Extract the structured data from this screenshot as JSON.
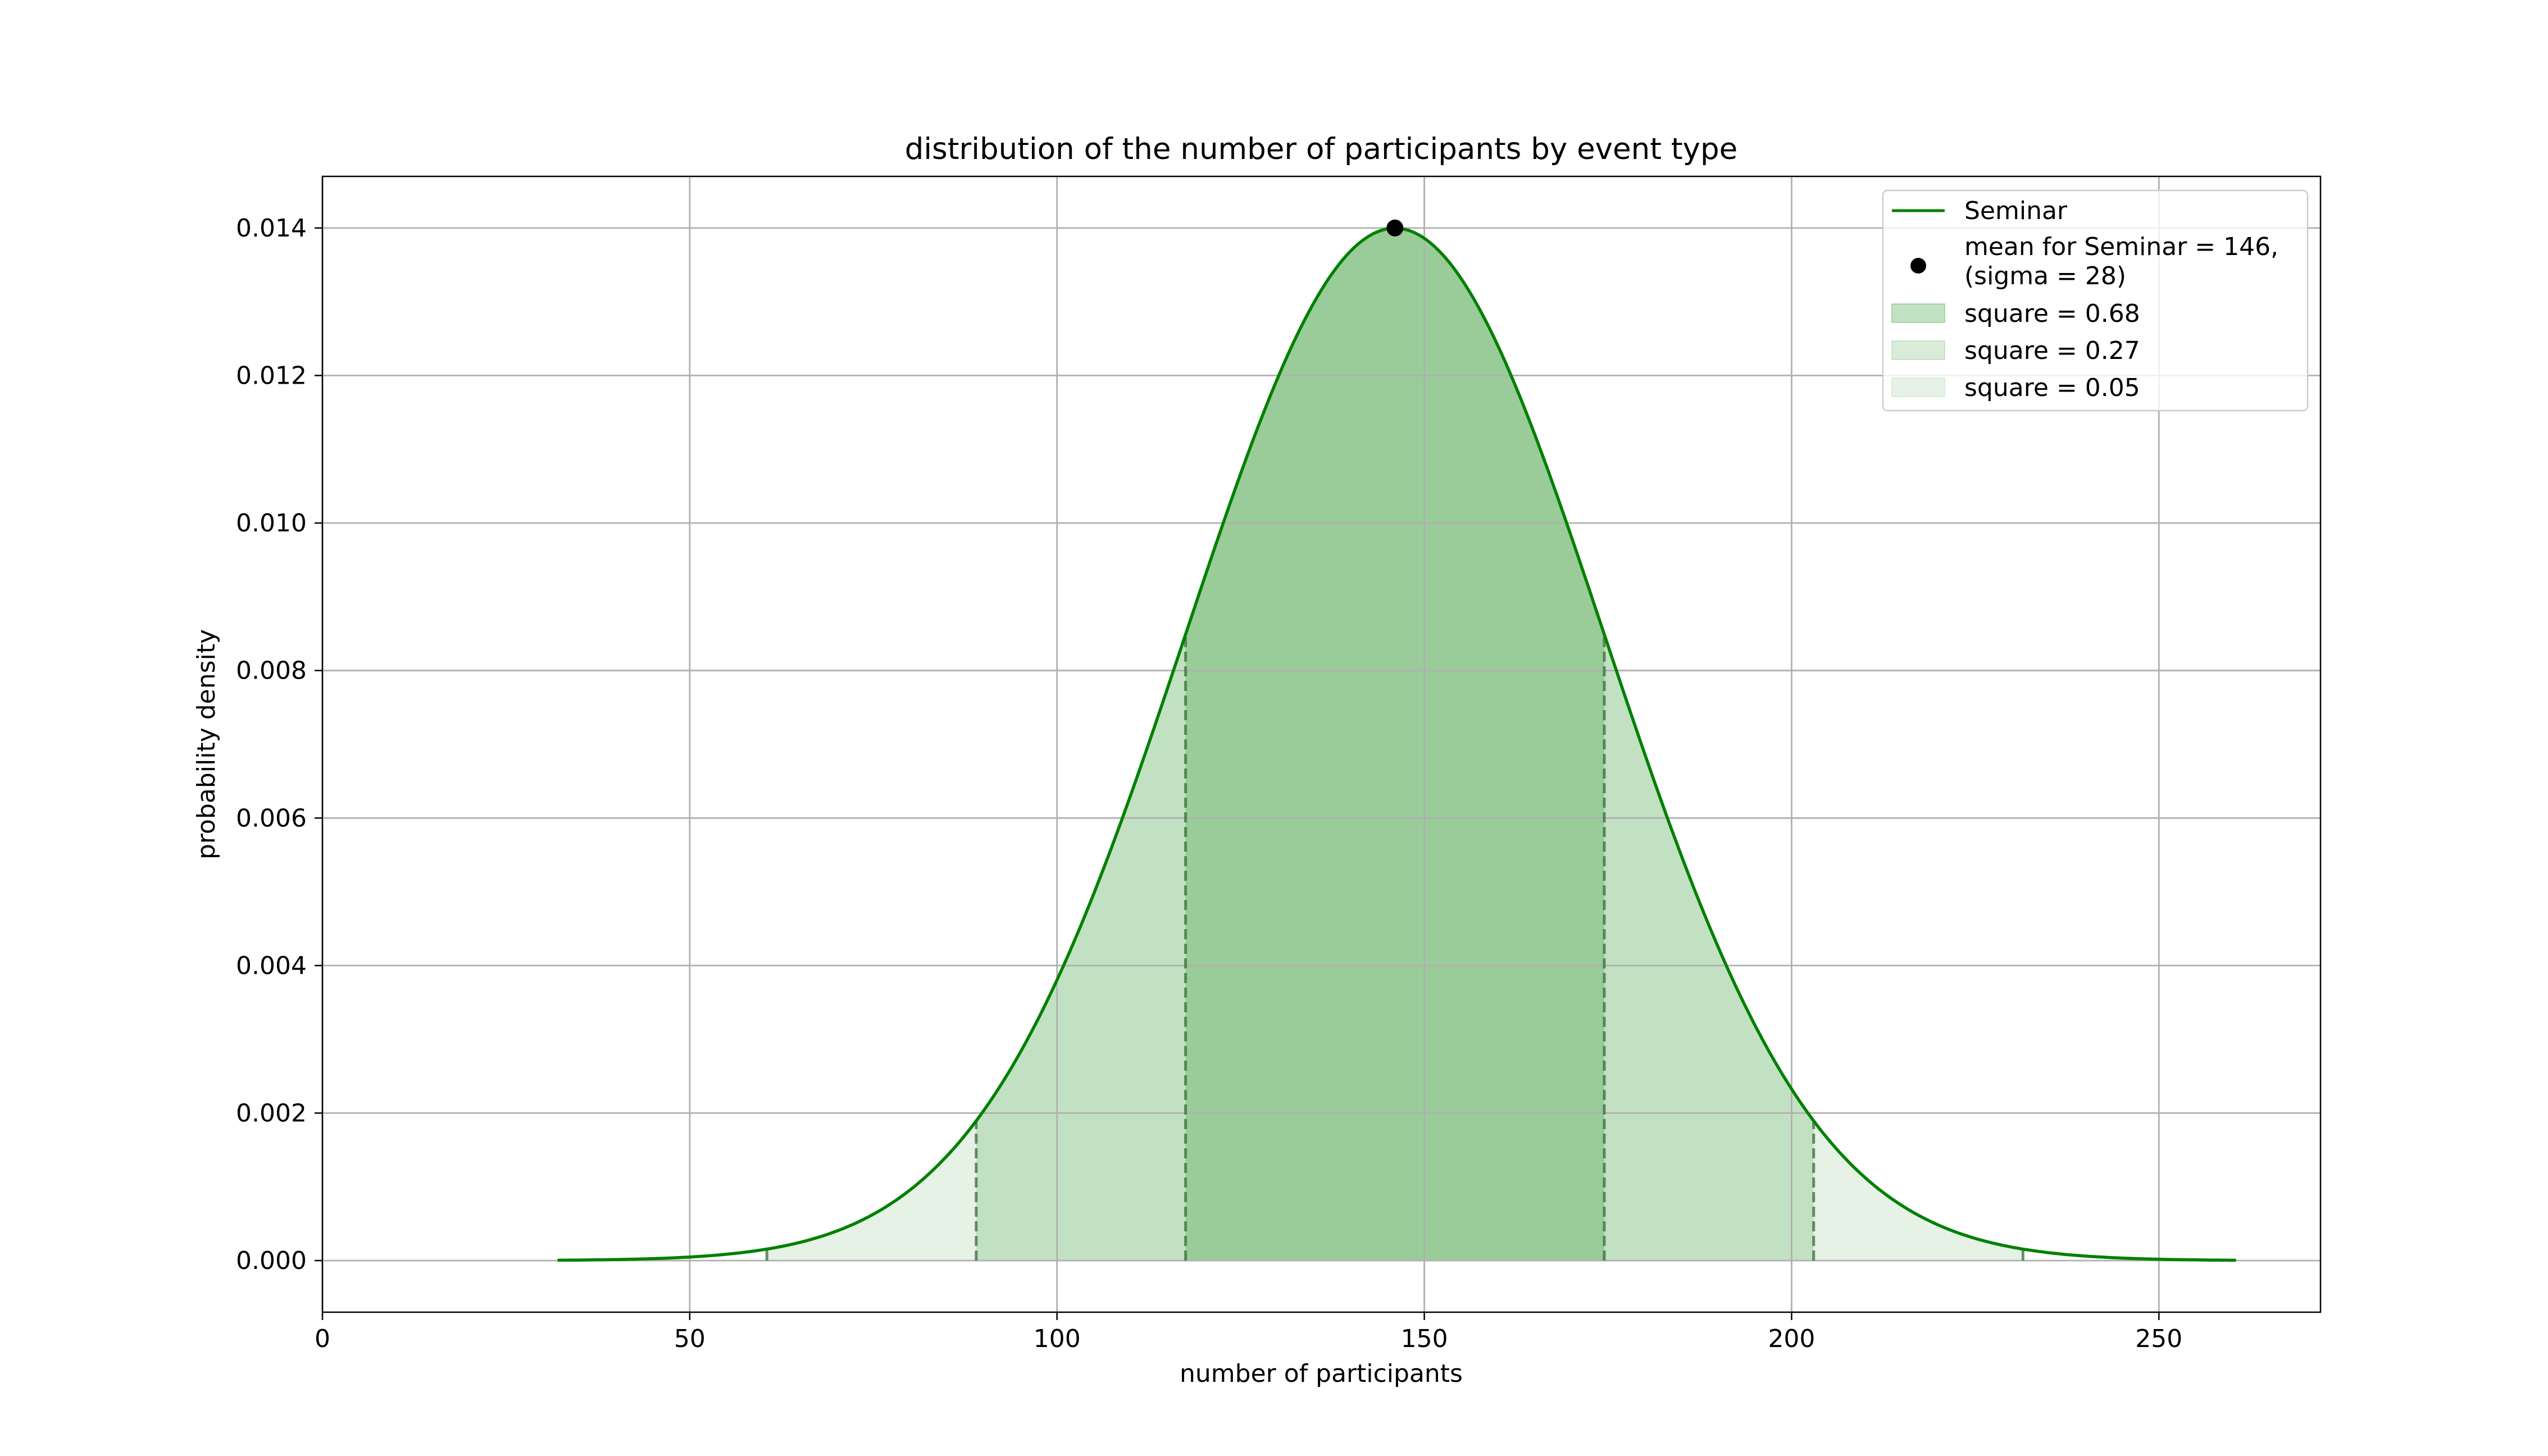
{
  "chart_data": {
    "type": "area",
    "title": "distribution of the number of participants by event type",
    "xlabel": "number of participants",
    "ylabel": "probability density",
    "xlim": [
      0,
      272
    ],
    "ylim": [
      -0.0007,
      0.0147
    ],
    "x_ticks": [
      0,
      50,
      100,
      150,
      200,
      250
    ],
    "x_tick_labels": [
      "0",
      "50",
      "100",
      "150",
      "200",
      "250"
    ],
    "y_ticks": [
      0.0,
      0.002,
      0.004,
      0.006,
      0.008,
      0.01,
      0.012,
      0.014
    ],
    "y_tick_labels": [
      "0.000",
      "0.002",
      "0.004",
      "0.006",
      "0.008",
      "0.010",
      "0.012",
      "0.014"
    ],
    "grid": true,
    "legend_position": "top-right",
    "distribution": {
      "kind": "normal",
      "mean": 146,
      "sigma": 28.5,
      "x_range": [
        32,
        260.5
      ]
    },
    "series": [
      {
        "name": "Seminar",
        "kind": "line",
        "color": "#008000"
      },
      {
        "name": "mean for Seminar = 146,\n(sigma = 28)",
        "kind": "point",
        "x": 146,
        "y": 0.014,
        "color": "#000000"
      }
    ],
    "bands": [
      {
        "label": "square = 0.68",
        "from": 117.5,
        "to": 174.5,
        "color": "#008000",
        "alpha": 0.4
      },
      {
        "label": "square = 0.27",
        "from": 89,
        "to": 117.5,
        "color": "#008000",
        "alpha": 0.24
      },
      {
        "label": "square = 0.27",
        "from": 174.5,
        "to": 203,
        "color": "#008000",
        "alpha": 0.24
      },
      {
        "label": "square = 0.05",
        "from": 60.5,
        "to": 89,
        "color": "#008000",
        "alpha": 0.1
      },
      {
        "label": "square = 0.05",
        "from": 203,
        "to": 231.5,
        "color": "#008000",
        "alpha": 0.1
      }
    ],
    "boundary_lines": [
      60.5,
      89,
      117.5,
      174.5,
      203,
      231.5
    ],
    "legend": [
      {
        "label": "Seminar",
        "kind": "line"
      },
      {
        "label": "mean for Seminar = 146,",
        "label2": "(sigma = 28)",
        "kind": "point"
      },
      {
        "label": "square = 0.68",
        "kind": "patch",
        "alpha": 0.4
      },
      {
        "label": "square = 0.27",
        "kind": "patch",
        "alpha": 0.24
      },
      {
        "label": "square = 0.05",
        "kind": "patch",
        "alpha": 0.1
      }
    ]
  }
}
